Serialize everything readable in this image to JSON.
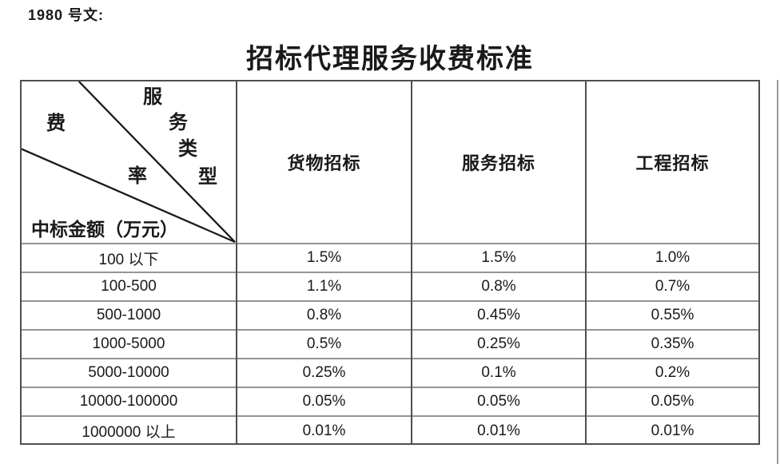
{
  "document": {
    "ref_label": "1980 号文:",
    "title": "招标代理服务收费标准"
  },
  "table": {
    "corner": {
      "service_type_chars": [
        "服",
        "务",
        "类",
        "型"
      ],
      "rate_chars": [
        "费",
        "率"
      ],
      "row_axis_label": "中标金额（万元）"
    },
    "columns": [
      "货物招标",
      "服务招标",
      "工程招标"
    ],
    "rows": [
      {
        "range": "100 以下",
        "values": [
          "1.5%",
          "1.5%",
          "1.0%"
        ]
      },
      {
        "range": "100-500",
        "values": [
          "1.1%",
          "0.8%",
          "0.7%"
        ]
      },
      {
        "range": "500-1000",
        "values": [
          "0.8%",
          "0.45%",
          "0.55%"
        ]
      },
      {
        "range": "1000-5000",
        "values": [
          "0.5%",
          "0.25%",
          "0.35%"
        ]
      },
      {
        "range": "5000-10000",
        "values": [
          "0.25%",
          "0.1%",
          "0.2%"
        ]
      },
      {
        "range": "10000-100000",
        "values": [
          "0.05%",
          "0.05%",
          "0.05%"
        ]
      },
      {
        "range": "1000000 以上",
        "values": [
          "0.01%",
          "0.01%",
          "0.01%"
        ]
      }
    ]
  },
  "colors": {
    "grid_dark": "#4f4f4f",
    "grid_light": "#949494",
    "text": "#1a1a1a",
    "page_edge": "#9a9a9a"
  }
}
